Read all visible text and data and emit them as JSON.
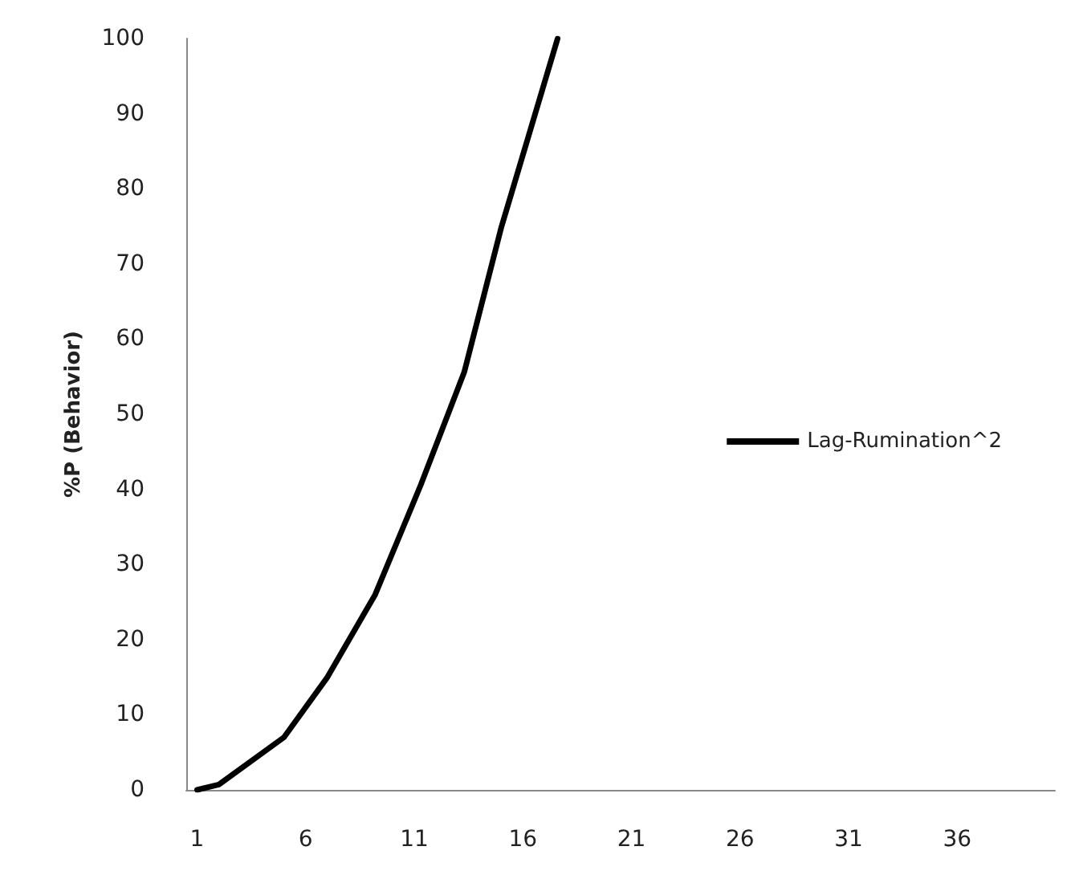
{
  "chart_data": {
    "type": "line",
    "ylabel": "%P (Behavior)",
    "xlim": [
      0.5,
      40.5
    ],
    "xticks": [
      1,
      6,
      11,
      16,
      21,
      26,
      31,
      36
    ],
    "ylim": [
      0,
      100
    ],
    "yticks": [
      0,
      10,
      20,
      30,
      40,
      50,
      60,
      70,
      80,
      90,
      100
    ],
    "grid": false,
    "legend": "right",
    "marker": "none",
    "line_style": "solid",
    "series": [
      {
        "name": "Lag-Rumination^2",
        "color": "#000000",
        "x": [
          1,
          2,
          5,
          7,
          9.2,
          11.3,
          13.3,
          15,
          17.6
        ],
        "values": [
          0,
          0.7,
          7,
          15,
          26,
          40.6,
          55.6,
          74.8,
          100
        ]
      }
    ]
  }
}
